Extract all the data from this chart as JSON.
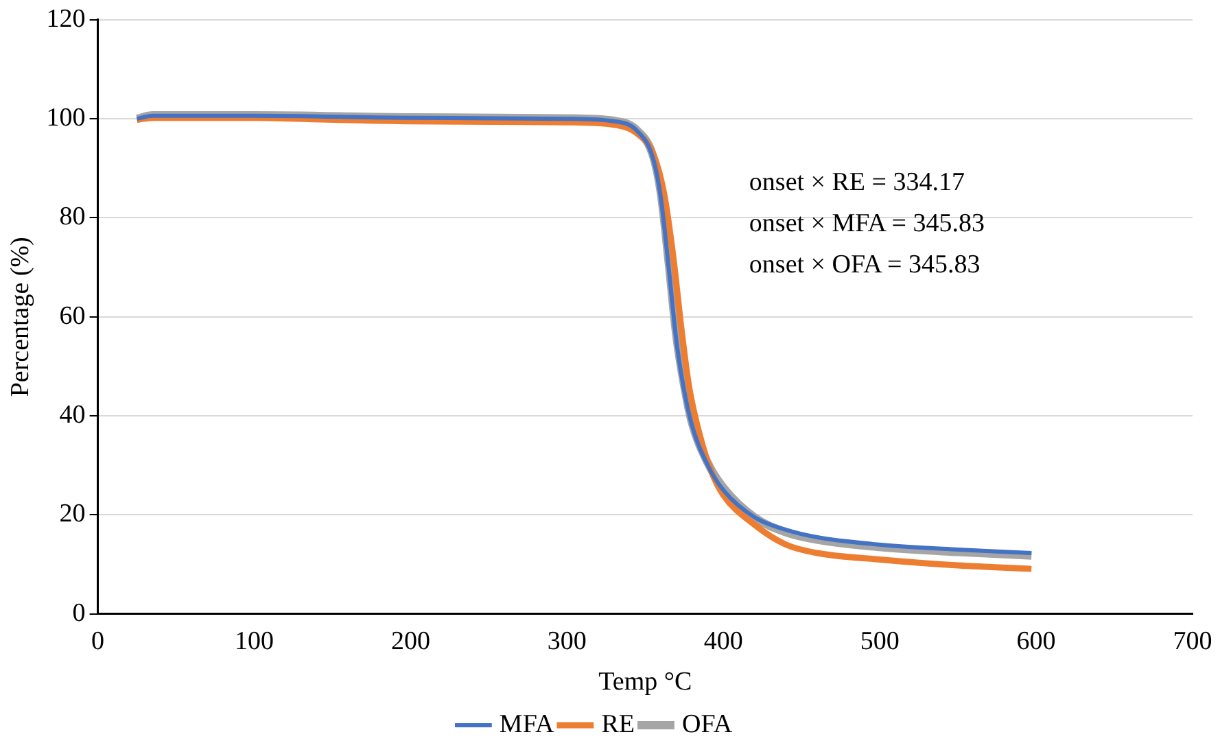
{
  "chart_data": {
    "type": "line",
    "xlabel": "Temp °C",
    "ylabel": "Percentage (%)",
    "xlim": [
      0,
      700
    ],
    "xticks": [
      0,
      100,
      200,
      300,
      400,
      500,
      600,
      700
    ],
    "ylim": [
      0,
      120
    ],
    "yticks": [
      0,
      20,
      40,
      60,
      80,
      100,
      120
    ],
    "grid": "y",
    "legend": "bottom",
    "marker": "none",
    "line_style": "solid",
    "annotations": [
      "onset × RE = 334.17",
      "onset × MFA = 345.83",
      "onset × OFA = 345.83"
    ],
    "series": [
      {
        "name": "MFA",
        "color": "#4472c4",
        "x": [
          25,
          35,
          100,
          200,
          300,
          330,
          345,
          355,
          360,
          365,
          370,
          375,
          380,
          390,
          400,
          420,
          440,
          460,
          500,
          550,
          597
        ],
        "values": [
          100,
          100.6,
          100.6,
          100.2,
          100,
          99.5,
          97.5,
          92,
          84,
          70,
          55,
          45,
          38,
          30,
          25,
          19.5,
          17,
          15.5,
          14,
          13,
          12.3
        ]
      },
      {
        "name": "RE",
        "color": "#ed7d31",
        "x": [
          25,
          35,
          100,
          150,
          200,
          300,
          330,
          345,
          355,
          362,
          368,
          373,
          378,
          385,
          392,
          400,
          420,
          440,
          460,
          500,
          550,
          597
        ],
        "values": [
          99.8,
          100.2,
          100.2,
          99.8,
          99.5,
          99.3,
          98.8,
          97,
          93,
          85,
          72,
          58,
          46,
          36,
          29,
          24,
          18,
          14,
          12.3,
          11,
          9.8,
          9.1
        ]
      },
      {
        "name": "OFA",
        "color": "#a5a5a5",
        "x": [
          25,
          35,
          100,
          200,
          300,
          330,
          345,
          355,
          360,
          365,
          370,
          375,
          380,
          390,
          400,
          420,
          440,
          460,
          500,
          550,
          597
        ],
        "values": [
          100,
          100.7,
          100.7,
          100.3,
          100.1,
          99.6,
          97.6,
          92.5,
          85,
          71,
          56,
          46,
          38.5,
          30.5,
          25.5,
          19.5,
          16.5,
          15,
          13.5,
          12.5,
          11.8
        ]
      }
    ]
  }
}
